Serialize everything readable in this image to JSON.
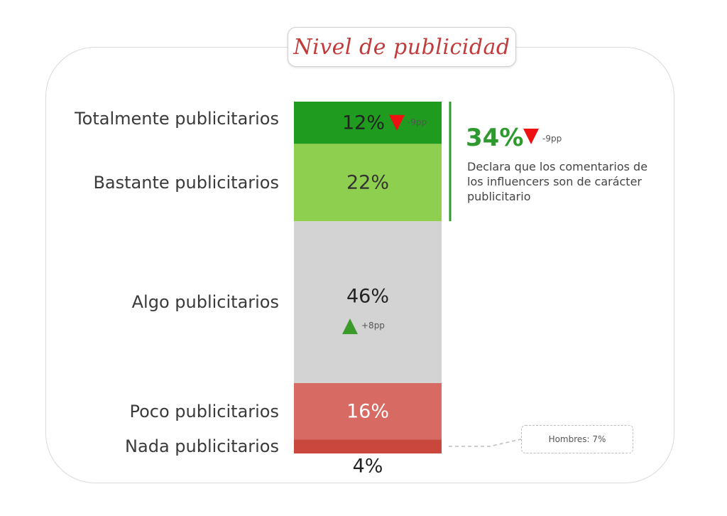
{
  "title": "Nivel de publicidad",
  "chart_data": {
    "type": "bar",
    "stacked": true,
    "categories": [
      "Totalmente publicitarios",
      "Bastante publicitarios",
      "Algo publicitarios",
      "Poco publicitarios",
      "Nada publicitarios"
    ],
    "values": [
      12,
      22,
      46,
      16,
      4
    ],
    "value_labels": [
      "12%",
      "22%",
      "46%",
      "16%",
      "4%"
    ],
    "colors": [
      "#1f9b1f",
      "#8fcf4f",
      "#d3d3d3",
      "#d76a63",
      "#c9473c"
    ],
    "label_colors": [
      "#222222",
      "#333333",
      "#222222",
      "#ffffff",
      "#222222"
    ],
    "deltas": [
      {
        "category": "Totalmente publicitarios",
        "direction": "down",
        "text": "-9pp",
        "color": "#ee1111"
      },
      {
        "category": "Algo publicitarios",
        "direction": "up",
        "text": "+8pp",
        "color": "#3a9a2a"
      }
    ]
  },
  "summary": {
    "value": "34%",
    "delta": "-9pp",
    "delta_direction": "down",
    "description": "Declara que los comentarios de los influencers son de carácter publicitario",
    "accent_color": "#2e9a2e"
  },
  "note": "Hombres: 7%"
}
